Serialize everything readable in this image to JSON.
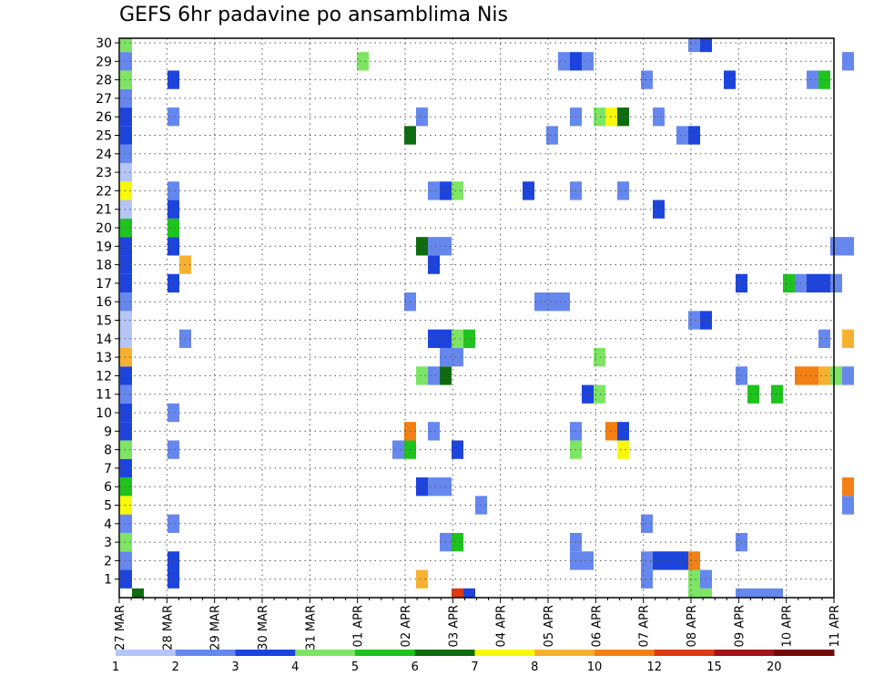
{
  "chart_data": {
    "type": "heatmap",
    "title": "GEFS 6hr padavine po ansamblima Nis",
    "xlabel": "",
    "ylabel": "",
    "x_ticks": [
      "27 MAR",
      "28 MAR",
      "29 MAR",
      "30 MAR",
      "31 MAR",
      "01 APR",
      "02 APR",
      "03 APR",
      "04 APR",
      "05 APR",
      "06 APR",
      "07 APR",
      "08 APR",
      "09 APR",
      "10 APR",
      "11 APR"
    ],
    "y_ticks": [
      1,
      2,
      3,
      4,
      5,
      6,
      7,
      8,
      9,
      10,
      11,
      12,
      13,
      14,
      15,
      16,
      17,
      18,
      19,
      20,
      21,
      22,
      23,
      24,
      25,
      26,
      27,
      28,
      29,
      30
    ],
    "xlim_days": [
      0,
      15
    ],
    "steps_per_day": 4,
    "ylim": [
      0,
      30
    ],
    "grid": true,
    "legend_placement": "bottom",
    "colorbar": {
      "labels": [
        "1",
        "2",
        "3",
        "4",
        "5",
        "6",
        "7",
        "8",
        "10",
        "12",
        "15",
        "20"
      ],
      "colors": [
        "#b4c5f7",
        "#6687ee",
        "#1c44dd",
        "#7ee564",
        "#1ec31e",
        "#0f6b0f",
        "#f8f80a",
        "#f7b131",
        "#f38014",
        "#dc3a14",
        "#a0141c",
        "#730a0a"
      ]
    },
    "cells": [
      [
        0,
        1,
        2
      ],
      [
        0,
        2,
        1
      ],
      [
        0,
        3,
        3
      ],
      [
        0,
        4,
        1
      ],
      [
        0,
        5,
        6
      ],
      [
        0,
        6,
        4
      ],
      [
        0,
        7,
        2
      ],
      [
        0,
        8,
        3
      ],
      [
        0,
        9,
        2
      ],
      [
        0,
        10,
        2
      ],
      [
        0,
        11,
        1
      ],
      [
        0,
        12,
        2
      ],
      [
        0,
        13,
        7
      ],
      [
        0,
        14,
        0
      ],
      [
        0,
        15,
        0
      ],
      [
        0,
        16,
        1
      ],
      [
        0,
        17,
        2
      ],
      [
        0,
        18,
        2
      ],
      [
        0,
        19,
        2
      ],
      [
        0,
        20,
        4
      ],
      [
        0,
        21,
        0
      ],
      [
        0,
        22,
        6
      ],
      [
        0,
        23,
        0
      ],
      [
        0,
        24,
        1
      ],
      [
        0,
        25,
        2
      ],
      [
        0,
        26,
        2
      ],
      [
        0,
        27,
        1
      ],
      [
        0,
        28,
        3
      ],
      [
        0,
        29,
        1
      ],
      [
        0,
        30,
        3
      ],
      [
        1,
        0,
        5
      ],
      [
        4,
        1,
        2
      ],
      [
        4,
        2,
        2
      ],
      [
        4,
        4,
        1
      ],
      [
        4,
        8,
        1
      ],
      [
        4,
        10,
        1
      ],
      [
        4,
        17,
        2
      ],
      [
        4,
        19,
        2
      ],
      [
        4,
        20,
        4
      ],
      [
        4,
        21,
        2
      ],
      [
        4,
        22,
        1
      ],
      [
        4,
        26,
        1
      ],
      [
        4,
        28,
        2
      ],
      [
        5,
        14,
        1
      ],
      [
        5,
        18,
        7
      ],
      [
        20,
        29,
        3
      ],
      [
        23,
        8,
        1
      ],
      [
        24,
        8,
        4
      ],
      [
        24,
        9,
        8
      ],
      [
        24,
        16,
        1
      ],
      [
        24,
        25,
        5
      ],
      [
        25,
        1,
        7
      ],
      [
        25,
        6,
        2
      ],
      [
        25,
        12,
        3
      ],
      [
        25,
        19,
        5
      ],
      [
        25,
        26,
        1
      ],
      [
        26,
        6,
        1
      ],
      [
        26,
        9,
        1
      ],
      [
        26,
        12,
        1
      ],
      [
        26,
        14,
        2
      ],
      [
        26,
        18,
        2
      ],
      [
        26,
        19,
        1
      ],
      [
        26,
        22,
        1
      ],
      [
        27,
        3,
        1
      ],
      [
        27,
        6,
        1
      ],
      [
        27,
        12,
        5
      ],
      [
        27,
        13,
        1
      ],
      [
        27,
        14,
        2
      ],
      [
        27,
        19,
        1
      ],
      [
        27,
        22,
        2
      ],
      [
        28,
        0,
        9
      ],
      [
        28,
        3,
        4
      ],
      [
        28,
        8,
        2
      ],
      [
        28,
        13,
        1
      ],
      [
        28,
        14,
        3
      ],
      [
        28,
        22,
        3
      ],
      [
        29,
        0,
        2
      ],
      [
        29,
        14,
        4
      ],
      [
        30,
        5,
        1
      ],
      [
        34,
        22,
        2
      ],
      [
        35,
        16,
        1
      ],
      [
        36,
        16,
        1
      ],
      [
        36,
        25,
        1
      ],
      [
        37,
        16,
        1
      ],
      [
        37,
        29,
        1
      ],
      [
        38,
        2,
        1
      ],
      [
        38,
        3,
        1
      ],
      [
        38,
        8,
        3
      ],
      [
        38,
        9,
        1
      ],
      [
        38,
        22,
        1
      ],
      [
        38,
        26,
        1
      ],
      [
        38,
        29,
        2
      ],
      [
        39,
        2,
        1
      ],
      [
        39,
        11,
        2
      ],
      [
        39,
        29,
        1
      ],
      [
        40,
        11,
        3
      ],
      [
        40,
        13,
        3
      ],
      [
        40,
        26,
        3
      ],
      [
        41,
        9,
        8
      ],
      [
        41,
        26,
        6
      ],
      [
        42,
        8,
        6
      ],
      [
        42,
        9,
        2
      ],
      [
        42,
        22,
        1
      ],
      [
        42,
        26,
        5
      ],
      [
        44,
        1,
        1
      ],
      [
        44,
        2,
        1
      ],
      [
        44,
        4,
        1
      ],
      [
        44,
        28,
        1
      ],
      [
        45,
        2,
        2
      ],
      [
        45,
        21,
        2
      ],
      [
        45,
        26,
        1
      ],
      [
        46,
        2,
        2
      ],
      [
        47,
        2,
        2
      ],
      [
        47,
        25,
        1
      ],
      [
        48,
        0,
        3
      ],
      [
        48,
        1,
        3
      ],
      [
        48,
        2,
        8
      ],
      [
        48,
        15,
        1
      ],
      [
        48,
        25,
        2
      ],
      [
        48,
        30,
        1
      ],
      [
        49,
        0,
        3
      ],
      [
        49,
        1,
        1
      ],
      [
        49,
        15,
        2
      ],
      [
        49,
        30,
        2
      ],
      [
        51,
        28,
        2
      ],
      [
        52,
        0,
        1
      ],
      [
        52,
        3,
        1
      ],
      [
        52,
        12,
        1
      ],
      [
        52,
        17,
        2
      ],
      [
        53,
        0,
        1
      ],
      [
        53,
        11,
        4
      ],
      [
        54,
        0,
        1
      ],
      [
        55,
        0,
        1
      ],
      [
        55,
        11,
        4
      ],
      [
        56,
        17,
        4
      ],
      [
        57,
        12,
        8
      ],
      [
        57,
        17,
        1
      ],
      [
        58,
        12,
        8
      ],
      [
        58,
        17,
        2
      ],
      [
        58,
        28,
        1
      ],
      [
        59,
        12,
        7
      ],
      [
        59,
        14,
        1
      ],
      [
        59,
        17,
        2
      ],
      [
        59,
        28,
        4
      ],
      [
        60,
        12,
        3
      ],
      [
        60,
        17,
        1
      ],
      [
        60,
        19,
        1
      ],
      [
        61,
        5,
        1
      ],
      [
        61,
        6,
        8
      ],
      [
        61,
        12,
        1
      ],
      [
        61,
        14,
        7
      ],
      [
        61,
        19,
        1
      ],
      [
        61,
        29,
        1
      ]
    ]
  }
}
